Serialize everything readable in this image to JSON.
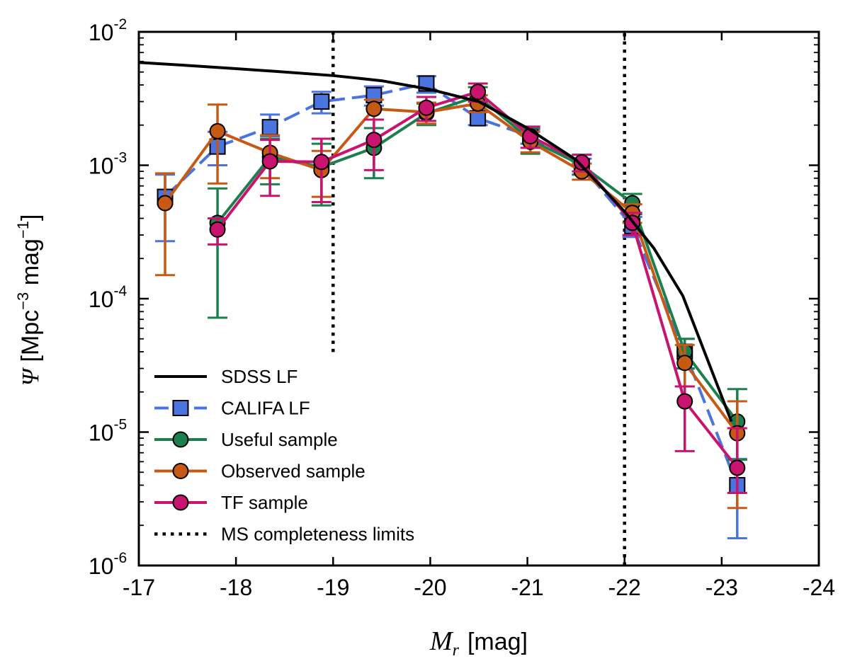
{
  "chart_data": {
    "type": "line",
    "xlabel_symbol": "M",
    "xlabel_subscript": "r",
    "xlabel_unit": "[mag]",
    "ylabel_symbol": "Ψ",
    "ylabel_prefix": "[Mpc",
    "ylabel_exp1": "−3",
    "ylabel_mid": " mag",
    "ylabel_exp2": "−1",
    "ylabel_suffix": "]",
    "xlim": [
      -17,
      -24
    ],
    "ylim_log10": [
      -6,
      -2
    ],
    "x_ticks": [
      -17,
      -18,
      -19,
      -20,
      -21,
      -22,
      -23,
      -24
    ],
    "x_tick_labels": [
      "-17",
      "-18",
      "-19",
      "-20",
      "-21",
      "-22",
      "-23",
      "-24"
    ],
    "y_ticks_log10": [
      -2,
      -3,
      -4,
      -5,
      -6
    ],
    "y_tick_base": "10",
    "y_tick_exponents": [
      "-2",
      "-3",
      "-4",
      "-5",
      "-6"
    ],
    "legend_position": "lower-left",
    "vlines": [
      {
        "x": -19.0,
        "y_range_log10": [
          -4.4,
          -2.0
        ],
        "style": "dotted",
        "color": "#000000",
        "legend": "MS completeness limits"
      },
      {
        "x": -22.0,
        "y_range_log10": [
          -6.0,
          -2.0
        ],
        "style": "dotted",
        "color": "#000000"
      }
    ],
    "series": [
      {
        "name": "SDSS LF",
        "color": "#000000",
        "marker": "none",
        "dash": "solid",
        "x": [
          -17.0,
          -17.5,
          -18.0,
          -18.5,
          -19.0,
          -19.5,
          -20.0,
          -20.5,
          -21.0,
          -21.5,
          -22.0,
          -22.3,
          -22.6,
          -23.1
        ],
        "y": [
          0.0059,
          0.0056,
          0.0053,
          0.005,
          0.0047,
          0.0043,
          0.0037,
          0.003,
          0.0019,
          0.0011,
          0.00045,
          0.00024,
          0.000105,
          1.2e-05
        ]
      },
      {
        "name": "CALIFA LF",
        "color": "#4a74e0",
        "marker": "square",
        "dash": "dashed",
        "x": [
          -17.27,
          -17.81,
          -18.35,
          -18.88,
          -19.42,
          -19.96,
          -20.49,
          -21.03,
          -21.56,
          -22.08,
          -22.62,
          -23.16
        ],
        "y": [
          0.00058,
          0.00138,
          0.00193,
          0.003,
          0.00335,
          0.0041,
          0.00225,
          0.00165,
          0.00098,
          0.00035,
          4e-05,
          4e-06
        ],
        "err_lo": [
          0.00027,
          0.001,
          0.00165,
          0.00245,
          0.0028,
          0.0035,
          0.002,
          0.00145,
          0.00085,
          0.00029,
          3e-05,
          1.6e-06
        ],
        "err_hi": [
          0.00085,
          0.00178,
          0.0024,
          0.00355,
          0.0039,
          0.00465,
          0.00253,
          0.00185,
          0.00112,
          0.00041,
          5e-05,
          6.3e-06
        ]
      },
      {
        "name": "Useful sample",
        "color": "#1e7f4e",
        "marker": "circle",
        "dash": "solid",
        "x": [
          -17.81,
          -18.35,
          -18.88,
          -19.42,
          -19.96,
          -20.49,
          -21.03,
          -21.56,
          -22.08,
          -22.62,
          -23.16
        ],
        "y": [
          0.00037,
          0.00115,
          0.00097,
          0.00135,
          0.00245,
          0.0033,
          0.00155,
          0.001,
          0.00052,
          4e-05,
          1.2e-05
        ],
        "err_lo": [
          7.2e-05,
          0.00072,
          0.0005,
          0.0008,
          0.002,
          0.0028,
          0.00122,
          0.00085,
          0.00043,
          3e-05,
          6.2e-06
        ],
        "err_hi": [
          0.00067,
          0.00158,
          0.00145,
          0.0019,
          0.0029,
          0.00385,
          0.0019,
          0.0012,
          0.00061,
          5e-05,
          2.1e-05
        ]
      },
      {
        "name": "Observed sample",
        "color": "#c65a14",
        "marker": "circle",
        "dash": "solid",
        "x": [
          -17.27,
          -17.81,
          -18.35,
          -18.88,
          -19.42,
          -19.96,
          -20.49,
          -21.03,
          -21.56,
          -22.08,
          -22.62,
          -23.16
        ],
        "y": [
          0.00052,
          0.0018,
          0.00124,
          0.00092,
          0.00265,
          0.0025,
          0.0029,
          0.0015,
          0.0009,
          0.00044,
          3.3e-05,
          9.8e-06
        ],
        "err_lo": [
          0.00015,
          0.00073,
          0.0008,
          0.00058,
          0.0022,
          0.00205,
          0.0025,
          0.00125,
          0.00078,
          0.00037,
          2.2e-05,
          2.7e-06
        ],
        "err_hi": [
          0.00087,
          0.00285,
          0.00168,
          0.00128,
          0.0031,
          0.00295,
          0.00335,
          0.00178,
          0.00103,
          0.00051,
          4.5e-05,
          1.7e-05
        ]
      },
      {
        "name": "TF sample",
        "color": "#c8136f",
        "marker": "circle",
        "dash": "solid",
        "x": [
          -17.81,
          -18.35,
          -18.88,
          -19.42,
          -19.96,
          -20.49,
          -21.03,
          -21.56,
          -22.08,
          -22.62,
          -23.16
        ],
        "y": [
          0.00033,
          0.00107,
          0.00106,
          0.00155,
          0.0027,
          0.00355,
          0.00165,
          0.00105,
          0.00037,
          1.7e-05,
          5.4e-06
        ],
        "err_lo": [
          0.000255,
          0.00059,
          0.00053,
          0.00092,
          0.00215,
          0.003,
          0.00135,
          0.0009,
          0.0003,
          7.2e-06,
          3.5e-06
        ],
        "err_hi": [
          0.0004,
          0.00155,
          0.00158,
          0.0022,
          0.00325,
          0.0041,
          0.00195,
          0.0012,
          0.00044,
          2.2e-05,
          1.07e-05
        ]
      }
    ],
    "legend_entries": [
      {
        "label": "SDSS LF",
        "series_index": 0
      },
      {
        "label": "CALIFA LF",
        "series_index": 1
      },
      {
        "label": "Useful sample",
        "series_index": 2
      },
      {
        "label": "Observed sample",
        "series_index": 3
      },
      {
        "label": "TF sample",
        "series_index": 4
      },
      {
        "label": "MS completeness limits",
        "vline": true
      }
    ]
  }
}
